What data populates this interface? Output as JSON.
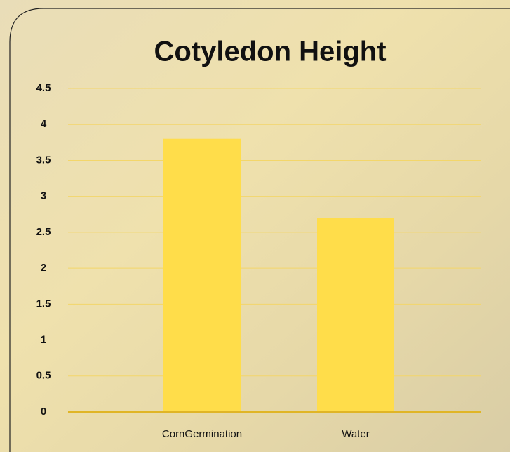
{
  "chart_data": {
    "type": "bar",
    "title": "Cotyledon Height",
    "categories": [
      "CornGermination",
      "Water"
    ],
    "values": [
      3.8,
      2.7
    ],
    "color": "#ffdd4a",
    "ylim": [
      0,
      4.5
    ],
    "yticks": [
      0,
      0.5,
      1,
      1.5,
      2,
      2.5,
      3,
      3.5,
      4,
      4.5
    ],
    "grid": true
  }
}
